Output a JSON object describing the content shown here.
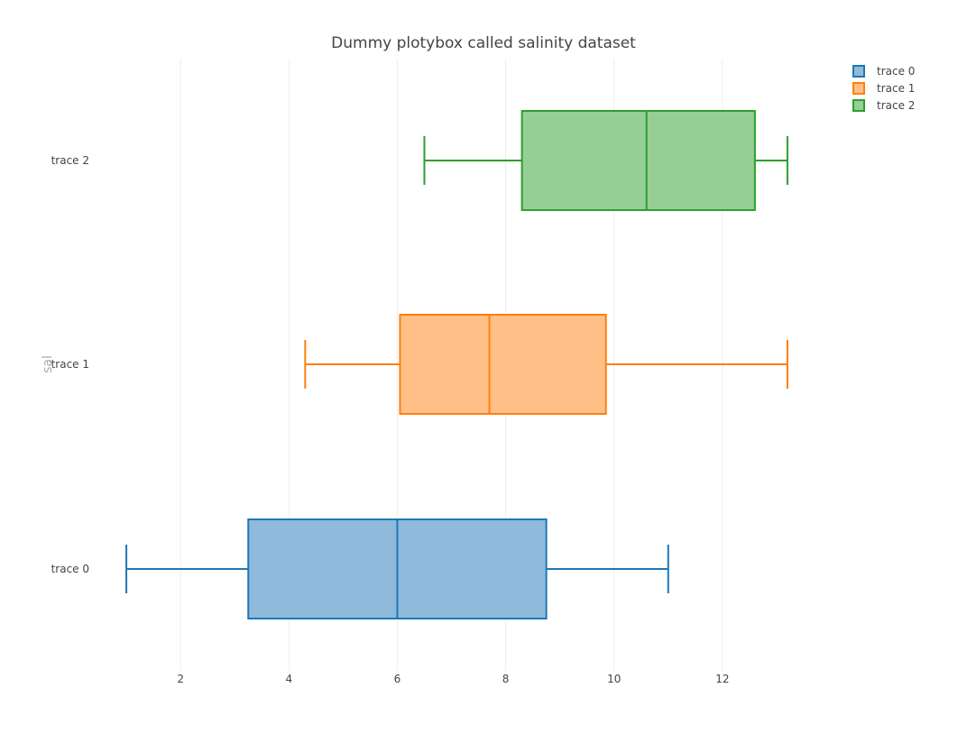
{
  "chart_data": {
    "type": "box",
    "orientation": "horizontal",
    "title": "Dummy plotybox called salinity dataset",
    "ylabel": "sal",
    "xlabel": "",
    "xlim": [
      0.0,
      14.0
    ],
    "x_ticks": [
      2,
      4,
      6,
      8,
      10,
      12
    ],
    "x_tick_labels": [
      "2",
      "4",
      "6",
      "8",
      "10",
      "12"
    ],
    "grid": "vertical",
    "legend_position": "top-right",
    "series": [
      {
        "name": "trace 0",
        "color": "#1f77b4",
        "fill": "#8fbadb",
        "min": 1.0,
        "q1": 3.25,
        "median": 6.0,
        "q3": 8.75,
        "max": 11.0
      },
      {
        "name": "trace 1",
        "color": "#ff7f0e",
        "fill": "#ffbf86",
        "min": 4.3,
        "q1": 6.05,
        "median": 7.7,
        "q3": 9.85,
        "max": 13.2
      },
      {
        "name": "trace 2",
        "color": "#2ca02c",
        "fill": "#96cf96",
        "min": 6.5,
        "q1": 8.3,
        "median": 10.6,
        "q3": 12.6,
        "max": 13.2
      }
    ]
  }
}
